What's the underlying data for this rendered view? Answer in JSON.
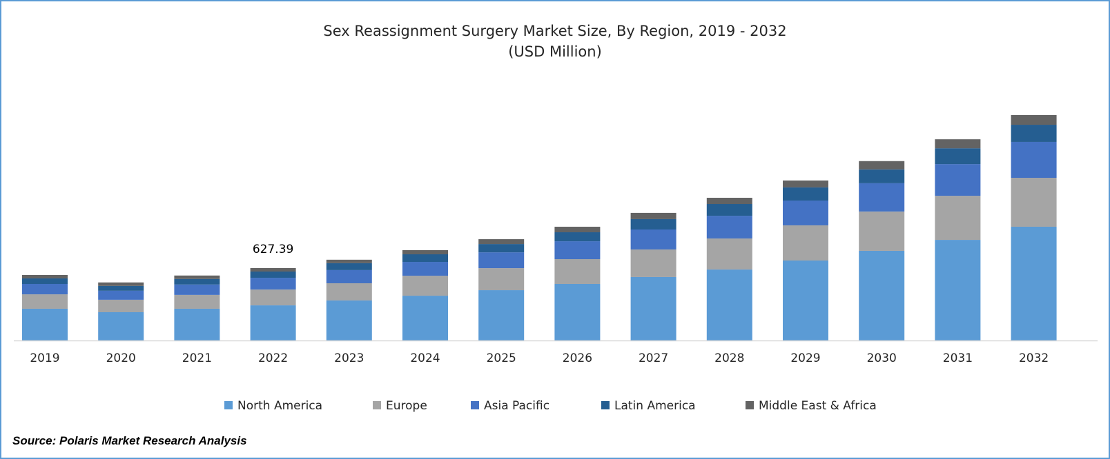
{
  "chart_data": {
    "type": "bar",
    "stacked": true,
    "title": "Sex Reassignment Surgery Market Size, By Region, 2019 - 2032",
    "subtitle": "(USD Million)",
    "xlabel": "",
    "ylabel": "",
    "ylim": [
      0,
      2100
    ],
    "grid": false,
    "legend_position": "bottom",
    "categories": [
      "2019",
      "2020",
      "2021",
      "2022",
      "2023",
      "2024",
      "2025",
      "2026",
      "2027",
      "2028",
      "2029",
      "2030",
      "2031",
      "2032"
    ],
    "series": [
      {
        "name": "North America",
        "color": "#5B9BD5",
        "values": [
          275,
          245,
          275,
          304.39,
          347,
          388,
          436,
          490,
          550,
          615,
          693,
          777,
          872,
          986
        ]
      },
      {
        "name": "Europe",
        "color": "#A5A5A5",
        "values": [
          125,
          108,
          120,
          137,
          149,
          173,
          191,
          215,
          239,
          269,
          305,
          341,
          382,
          424
        ]
      },
      {
        "name": "Asia Pacific",
        "color": "#4472C4",
        "values": [
          90,
          78,
          90,
          102,
          114,
          120,
          137,
          155,
          173,
          197,
          215,
          245,
          275,
          311
        ]
      },
      {
        "name": "Latin America",
        "color": "#255E91",
        "values": [
          48,
          42,
          48,
          54,
          60,
          66,
          72,
          78,
          90,
          102,
          114,
          120,
          137,
          149
        ]
      },
      {
        "name": "Middle East & Africa",
        "color": "#636363",
        "values": [
          30,
          30,
          30,
          30,
          30,
          36,
          42,
          48,
          54,
          54,
          60,
          72,
          78,
          84
        ]
      }
    ],
    "annotations": [
      {
        "category": "2022",
        "text": "627.39"
      }
    ]
  },
  "source": "Source: Polaris Market Research Analysis"
}
